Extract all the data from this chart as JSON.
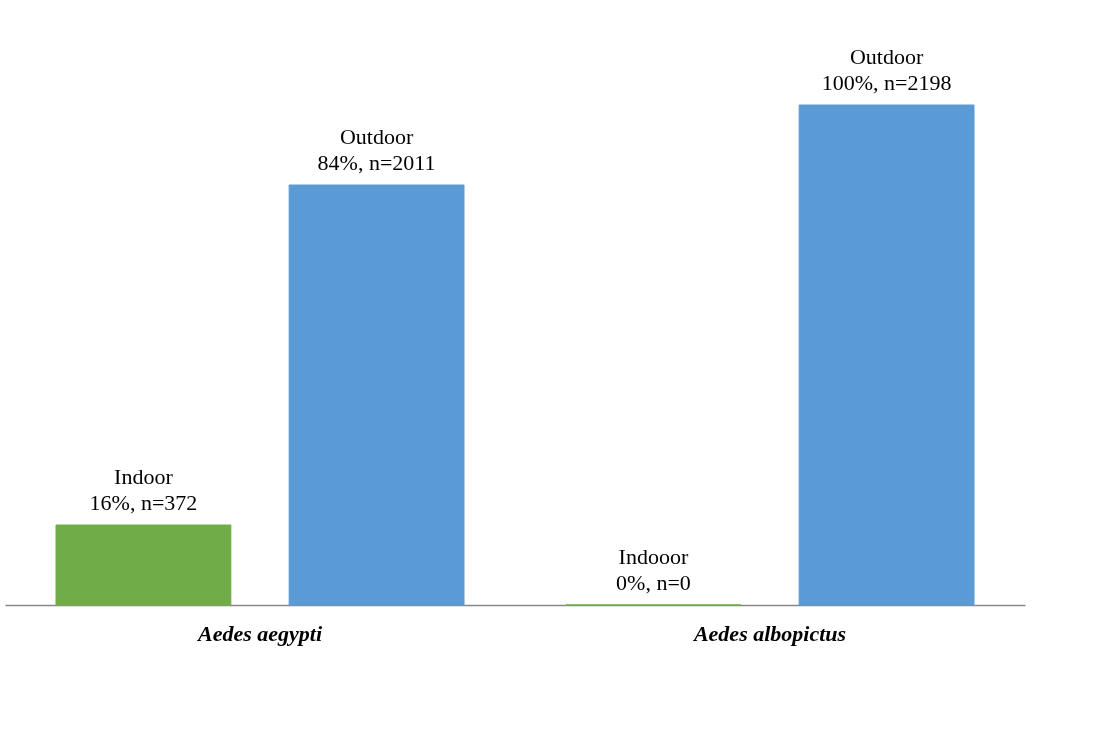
{
  "chart_data": {
    "type": "bar",
    "categories": [
      "Aedes aegypti",
      "Aedes albopictus"
    ],
    "series": [
      {
        "color": "#70ad47",
        "values": [
          16,
          0
        ],
        "value_labels": [
          "Indoor\n16%, n=372",
          "Indooor\n0%, n=0"
        ]
      },
      {
        "color": "#5b9bd5",
        "values": [
          84,
          100
        ],
        "value_labels": [
          "Outdoor\n84%, n=2011",
          "Outdoor\n100%, n=2198"
        ]
      }
    ],
    "grid": false,
    "tick_labels": "x"
  }
}
